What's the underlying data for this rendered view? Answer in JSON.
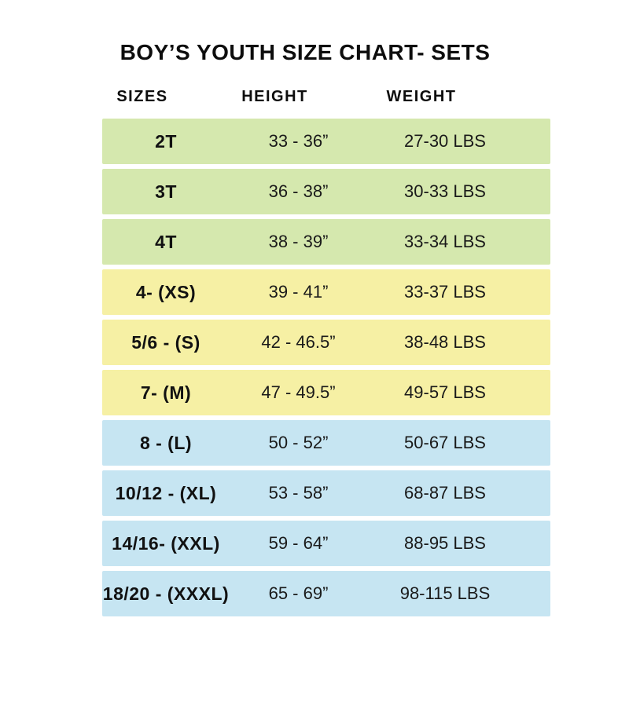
{
  "page": {
    "title": "BOY’S YOUTH SIZE CHART- SETS",
    "background": "#ffffff"
  },
  "table": {
    "headers": [
      {
        "label": "SIZES"
      },
      {
        "label": "HEIGHT"
      },
      {
        "label": "WEIGHT"
      }
    ],
    "group_colors": {
      "toddler_green": "#d5e8ae",
      "kids_yellow": "#f6f0a4",
      "youth_blue": "#c6e5f2"
    },
    "rows": [
      {
        "size": "2T",
        "height": "33 - 36”",
        "weight": "27-30 LBS",
        "color": "#d5e8ae"
      },
      {
        "size": "3T",
        "height": "36 - 38”",
        "weight": "30-33 LBS",
        "color": "#d5e8ae"
      },
      {
        "size": "4T",
        "height": "38 - 39”",
        "weight": "33-34 LBS",
        "color": "#d5e8ae"
      },
      {
        "size": "4- (XS)",
        "height": "39 - 41”",
        "weight": "33-37 LBS",
        "color": "#f6f0a4"
      },
      {
        "size": "5/6 - (S)",
        "height": "42 - 46.5”",
        "weight": "38-48 LBS",
        "color": "#f6f0a4"
      },
      {
        "size": "7- (M)",
        "height": "47 - 49.5”",
        "weight": "49-57 LBS",
        "color": "#f6f0a4"
      },
      {
        "size": "8 - (L)",
        "height": "50 - 52”",
        "weight": "50-67 LBS",
        "color": "#c6e5f2"
      },
      {
        "size": "10/12 - (XL)",
        "height": "53 - 58”",
        "weight": "68-87 LBS",
        "color": "#c6e5f2"
      },
      {
        "size": "14/16- (XXL)",
        "height": "59 - 64”",
        "weight": "88-95 LBS",
        "color": "#c6e5f2"
      },
      {
        "size": "18/20 - (XXXL)",
        "height": "65 - 69”",
        "weight": "98-115 LBS",
        "color": "#c6e5f2"
      }
    ]
  },
  "chart_data": {
    "type": "table",
    "title": "BOY’S YOUTH SIZE CHART- SETS",
    "columns": [
      "SIZES",
      "HEIGHT",
      "WEIGHT"
    ],
    "rows": [
      [
        "2T",
        "33 - 36”",
        "27-30 LBS"
      ],
      [
        "3T",
        "36 - 38”",
        "30-33 LBS"
      ],
      [
        "4T",
        "38 - 39”",
        "33-34 LBS"
      ],
      [
        "4- (XS)",
        "39 - 41”",
        "33-37 LBS"
      ],
      [
        "5/6 - (S)",
        "42 - 46.5”",
        "38-48 LBS"
      ],
      [
        "7- (M)",
        "47 - 49.5”",
        "49-57 LBS"
      ],
      [
        "8 - (L)",
        "50 - 52”",
        "50-67 LBS"
      ],
      [
        "10/12 - (XL)",
        "53 - 58”",
        "68-87 LBS"
      ],
      [
        "14/16- (XXL)",
        "59 - 64”",
        "88-95 LBS"
      ],
      [
        "18/20 - (XXXL)",
        "65 - 69”",
        "98-115 LBS"
      ]
    ],
    "row_group_colors": [
      "#d5e8ae",
      "#d5e8ae",
      "#d5e8ae",
      "#f6f0a4",
      "#f6f0a4",
      "#f6f0a4",
      "#c6e5f2",
      "#c6e5f2",
      "#c6e5f2",
      "#c6e5f2"
    ]
  }
}
